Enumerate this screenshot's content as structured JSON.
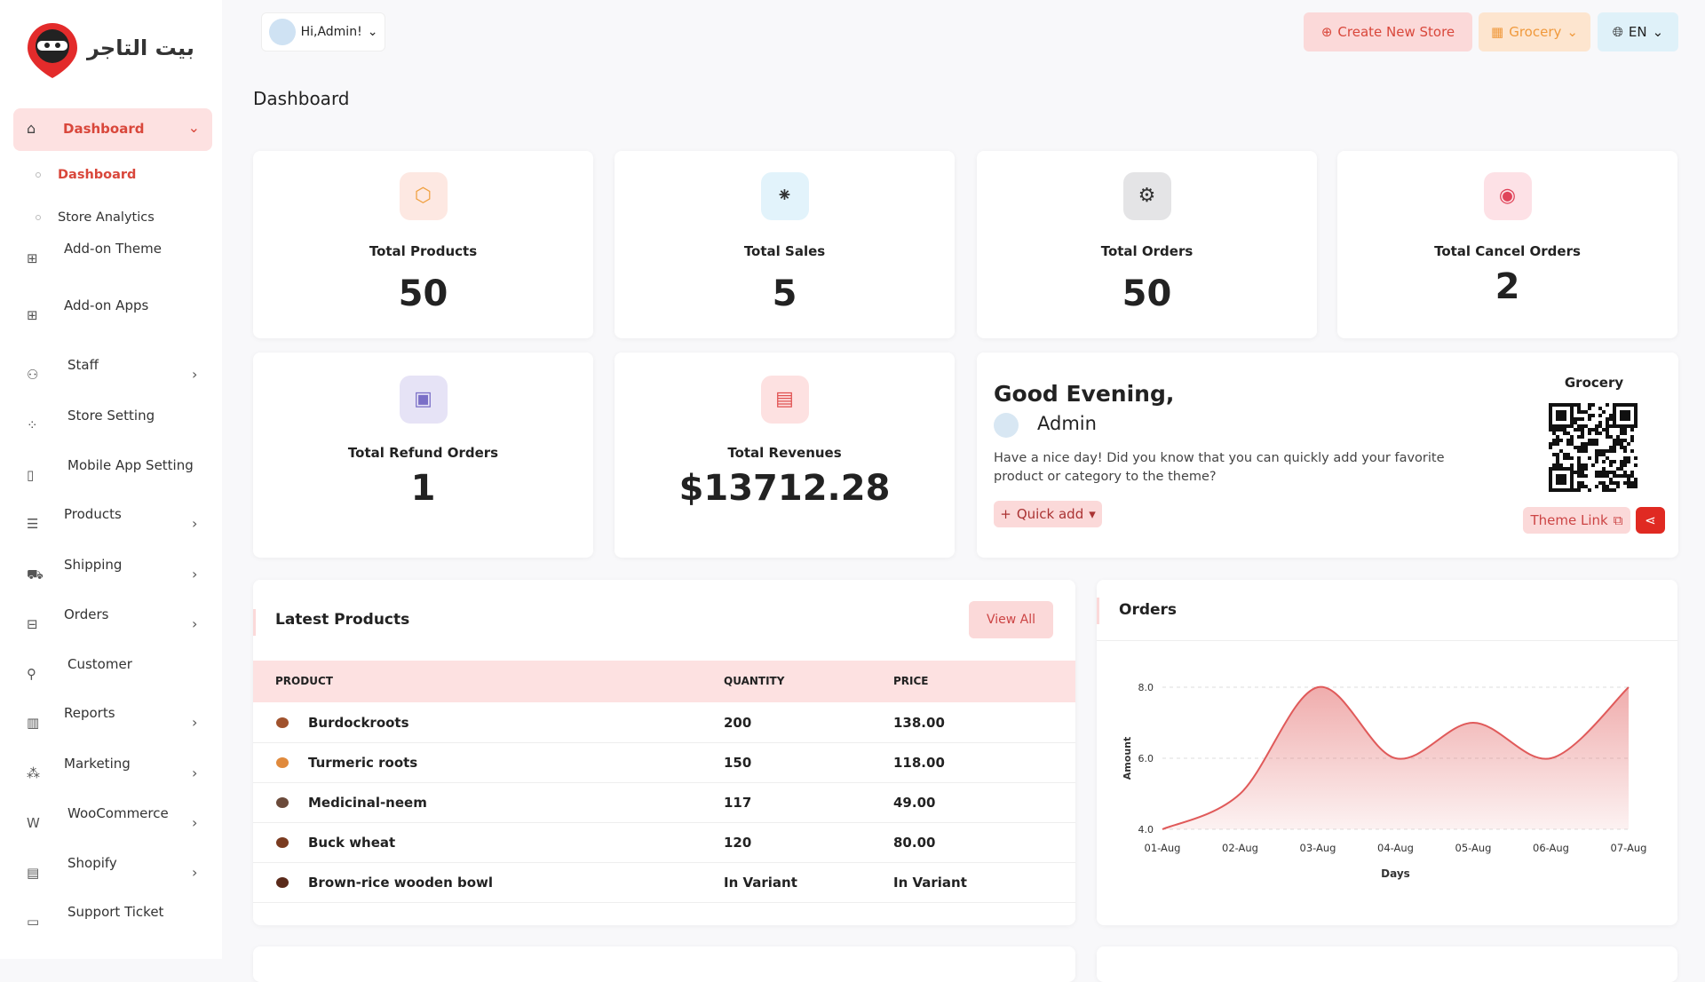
{
  "header": {
    "logo_text": "بيت التاجر",
    "greeting": "Hi,Admin!",
    "create_store": "Create New Store",
    "store": "Grocery",
    "language": "EN"
  },
  "sidebar": {
    "items": [
      "Dashboard",
      "Add-on Theme",
      "Add-on Apps",
      "Staff",
      "Store Setting",
      "Mobile App Setting",
      "Products",
      "Shipping",
      "Orders",
      "Customer",
      "Reports",
      "Marketing",
      "WooCommerce",
      "Shopify",
      "Support Ticket"
    ],
    "submenu": [
      "Dashboard",
      "Store Analytics"
    ]
  },
  "page_title": "Dashboard",
  "stats": [
    {
      "label": "Total Products",
      "value": 50
    },
    {
      "label": "Total Sales",
      "value": 5
    },
    {
      "label": "Total Orders",
      "value": 50
    },
    {
      "label": "Total Cancel Orders",
      "value": 2
    },
    {
      "label": "Total Refund Orders",
      "value": 1
    },
    {
      "label": "Total Revenues",
      "value": "$13712.28"
    }
  ],
  "welcome": {
    "title": "Good Evening,",
    "name": "Admin",
    "message": "Have a nice day! Did you know that you can quickly add your favorite product or category to the theme?",
    "quick_add": "Quick add",
    "store_name": "Grocery",
    "theme_link": "Theme Link"
  },
  "latest_products": {
    "title": "Latest Products",
    "view_all": "View All",
    "columns": [
      "PRODUCT",
      "QUANTITY",
      "PRICE"
    ],
    "rows": [
      [
        "Burdockroots",
        "200",
        "138.00"
      ],
      [
        "Turmeric roots",
        "150",
        "118.00"
      ],
      [
        "Medicinal-neem",
        "117",
        "49.00"
      ],
      [
        "Buck wheat",
        "120",
        "80.00"
      ],
      [
        "Brown-rice wooden bowl",
        "In Variant",
        "In Variant"
      ]
    ]
  },
  "orders_chart": {
    "type": "area",
    "title": "Orders",
    "x": [
      "01-Aug",
      "02-Aug",
      "03-Aug",
      "04-Aug",
      "05-Aug",
      "06-Aug",
      "07-Aug"
    ],
    "values": [
      4,
      5,
      8,
      6,
      7,
      6,
      8
    ],
    "ylim": [
      4,
      8
    ],
    "yticks": [
      {
        "value": 4,
        "label": "4.0"
      },
      {
        "value": 6,
        "label": "6.0"
      },
      {
        "value": 8,
        "label": "8.0"
      }
    ],
    "xlabel": "Days",
    "ylabel": "Amount",
    "color": "#e05a5a",
    "grid": true
  }
}
